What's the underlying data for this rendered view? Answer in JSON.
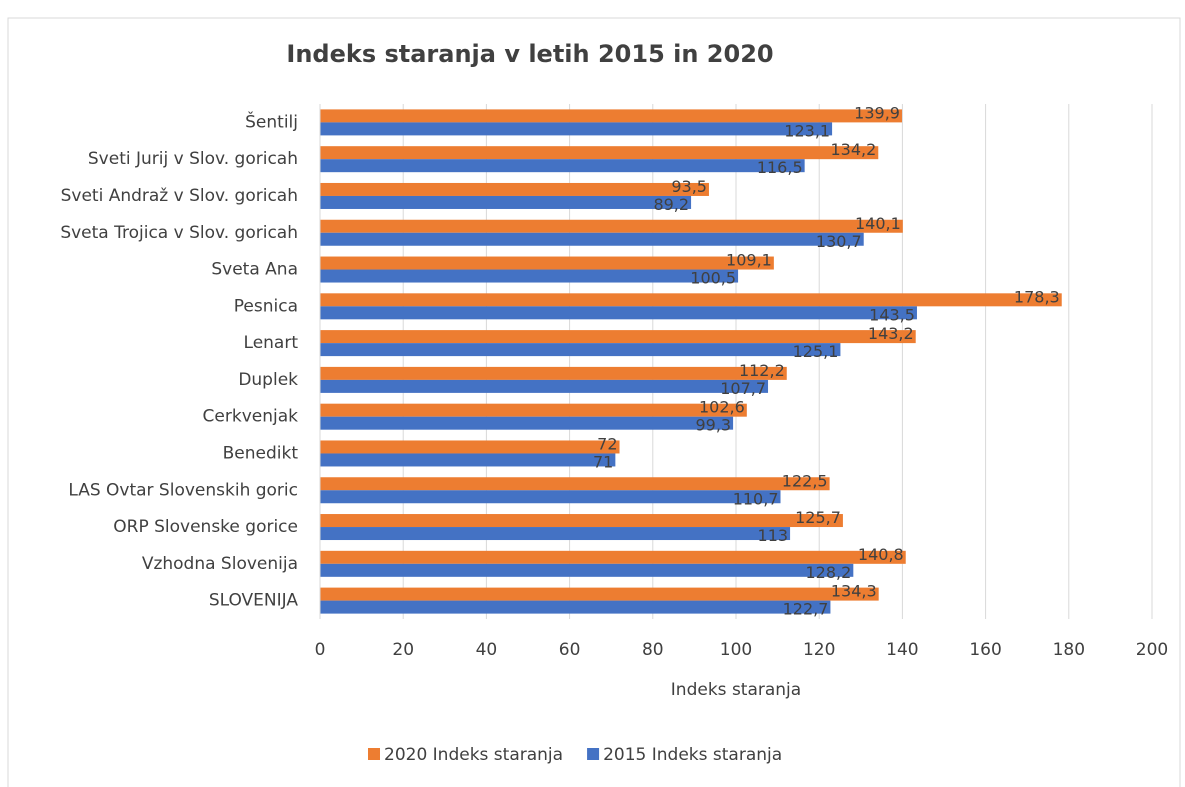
{
  "chart_data": {
    "type": "barh",
    "title": "Indeks staranja v letih 2015 in 2020",
    "x_label": "Indeks staranja",
    "categories": [
      "Šentilj",
      "Sveti Jurij v Slov. goricah",
      "Sveti Andraž v Slov. goricah",
      "Sveta Trojica v Slov. goricah",
      "Sveta Ana",
      "Pesnica",
      "Lenart",
      "Duplek",
      "Cerkvenjak",
      "Benedikt",
      "LAS Ovtar Slovenskih goric",
      "ORP Slovenske gorice",
      "Vzhodna Slovenija",
      "SLOVENIJA"
    ],
    "series": [
      {
        "name": "2020 Indeks staranja",
        "color": "#ed7d31",
        "values": [
          139.9,
          134.2,
          93.5,
          140.1,
          109.1,
          178.3,
          143.2,
          112.2,
          102.6,
          72,
          122.5,
          125.7,
          140.8,
          134.3
        ],
        "value_labels": [
          "139,9",
          "134,2",
          "93,5",
          "140,1",
          "109,1",
          "178,3",
          "143,2",
          "112,2",
          "102,6",
          "72",
          "122,5",
          "125,7",
          "140,8",
          "134,3"
        ]
      },
      {
        "name": "2015 Indeks staranja",
        "color": "#4472c4",
        "values": [
          123.1,
          116.5,
          89.2,
          130.7,
          100.5,
          143.5,
          125.1,
          107.7,
          99.3,
          71,
          110.7,
          113,
          128.2,
          122.7
        ],
        "value_labels": [
          "123,1",
          "116,5",
          "89,2",
          "130,7",
          "100,5",
          "143,5",
          "125,1",
          "107,7",
          "99,3",
          "71",
          "110,7",
          "113",
          "128,2",
          "122,7"
        ]
      }
    ],
    "xlim": [
      0,
      200
    ],
    "xticks": [
      0,
      20,
      40,
      60,
      80,
      100,
      120,
      140,
      160,
      180,
      200
    ],
    "grid": true,
    "legend": "bottom"
  }
}
